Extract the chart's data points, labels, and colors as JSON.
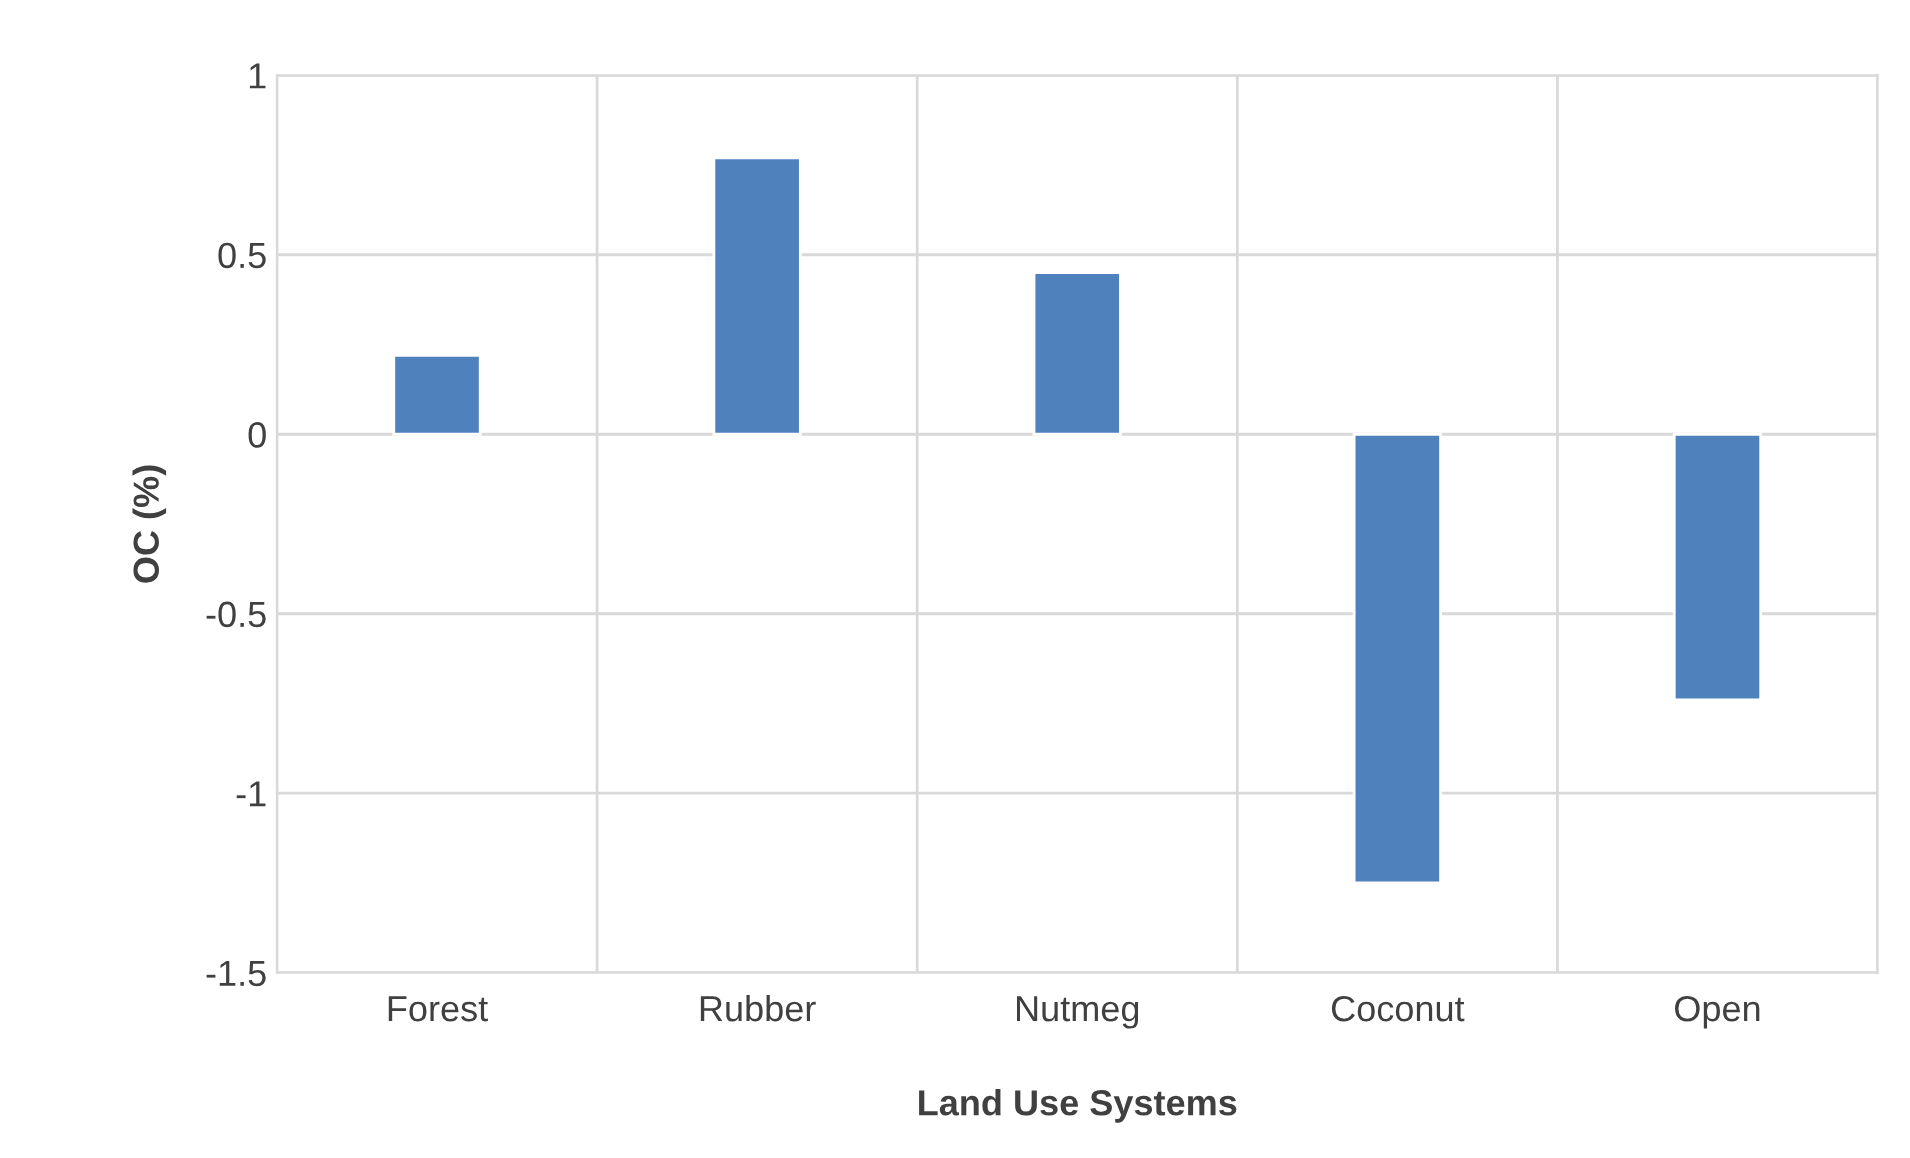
{
  "chart_data": {
    "type": "bar",
    "xlabel": "Land Use Systems",
    "ylabel": "OC (%)",
    "categories": [
      "Forest",
      "Rubber",
      "Nutmeg",
      "Coconut",
      "Open"
    ],
    "values": [
      0.22,
      0.77,
      0.45,
      -1.25,
      -0.74
    ],
    "color": "#4f81bd",
    "ylim": [
      -1.5,
      1
    ],
    "yticks": [
      {
        "value": -1.5,
        "label": "-1.5"
      },
      {
        "value": -1,
        "label": "-1"
      },
      {
        "value": -0.5,
        "label": "-0.5"
      },
      0,
      0.5,
      1
    ],
    "grid": true,
    "legend": false
  }
}
